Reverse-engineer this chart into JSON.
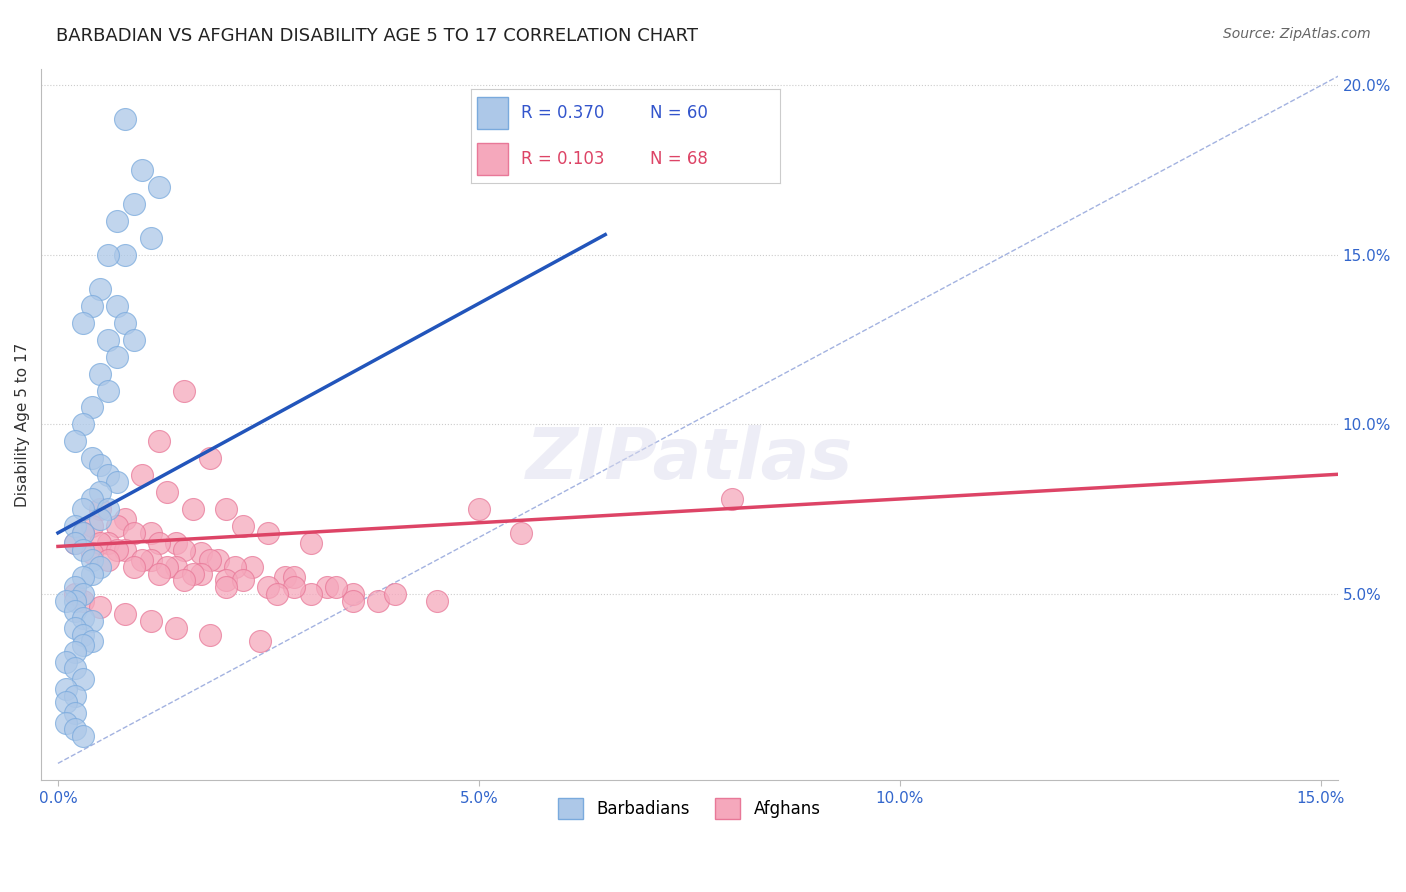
{
  "title": "BARBADIAN VS AFGHAN DISABILITY AGE 5 TO 17 CORRELATION CHART",
  "source_text": "Source: ZipAtlas.com",
  "ylabel": "Disability Age 5 to 17",
  "xlim": [
    -0.002,
    0.152
  ],
  "ylim": [
    -0.005,
    0.205
  ],
  "xticks": [
    0.0,
    0.05,
    0.1,
    0.15
  ],
  "xtick_labels": [
    "0.0%",
    "5.0%",
    "10.0%",
    "15.0%"
  ],
  "yticks": [
    0.05,
    0.1,
    0.15,
    0.2
  ],
  "ytick_labels": [
    "5.0%",
    "10.0%",
    "15.0%",
    "20.0%"
  ],
  "grid_color": "#cccccc",
  "background_color": "#ffffff",
  "barbadian_color": "#adc8e8",
  "afghan_color": "#f5a8bc",
  "barbadian_edge_color": "#7aaadd",
  "afghan_edge_color": "#e87898",
  "barbadian_line_color": "#2255bb",
  "afghan_line_color": "#dd4466",
  "diagonal_color": "#99aadd",
  "R_barbadian": 0.37,
  "N_barbadian": 60,
  "R_afghan": 0.103,
  "N_afghan": 68,
  "barbadian_x": [
    0.008,
    0.01,
    0.012,
    0.009,
    0.007,
    0.011,
    0.008,
    0.006,
    0.005,
    0.004,
    0.003,
    0.006,
    0.007,
    0.008,
    0.009,
    0.007,
    0.005,
    0.006,
    0.004,
    0.003,
    0.002,
    0.004,
    0.005,
    0.006,
    0.007,
    0.005,
    0.004,
    0.006,
    0.003,
    0.005,
    0.002,
    0.003,
    0.002,
    0.003,
    0.004,
    0.005,
    0.004,
    0.003,
    0.002,
    0.003,
    0.002,
    0.001,
    0.002,
    0.003,
    0.004,
    0.002,
    0.003,
    0.004,
    0.003,
    0.002,
    0.001,
    0.002,
    0.003,
    0.001,
    0.002,
    0.001,
    0.002,
    0.001,
    0.002,
    0.003
  ],
  "barbadian_y": [
    0.19,
    0.175,
    0.17,
    0.165,
    0.16,
    0.155,
    0.15,
    0.15,
    0.14,
    0.135,
    0.13,
    0.125,
    0.135,
    0.13,
    0.125,
    0.12,
    0.115,
    0.11,
    0.105,
    0.1,
    0.095,
    0.09,
    0.088,
    0.085,
    0.083,
    0.08,
    0.078,
    0.075,
    0.075,
    0.072,
    0.07,
    0.068,
    0.065,
    0.063,
    0.06,
    0.058,
    0.056,
    0.055,
    0.052,
    0.05,
    0.048,
    0.048,
    0.045,
    0.043,
    0.042,
    0.04,
    0.038,
    0.036,
    0.035,
    0.033,
    0.03,
    0.028,
    0.025,
    0.022,
    0.02,
    0.018,
    0.015,
    0.012,
    0.01,
    0.008
  ],
  "afghan_x": [
    0.012,
    0.015,
    0.018,
    0.01,
    0.013,
    0.016,
    0.02,
    0.022,
    0.025,
    0.03,
    0.008,
    0.011,
    0.014,
    0.017,
    0.019,
    0.023,
    0.027,
    0.032,
    0.035,
    0.038,
    0.005,
    0.007,
    0.009,
    0.012,
    0.015,
    0.018,
    0.021,
    0.028,
    0.033,
    0.04,
    0.004,
    0.006,
    0.008,
    0.011,
    0.014,
    0.017,
    0.02,
    0.025,
    0.03,
    0.045,
    0.003,
    0.005,
    0.007,
    0.01,
    0.013,
    0.016,
    0.022,
    0.028,
    0.05,
    0.08,
    0.002,
    0.004,
    0.006,
    0.009,
    0.012,
    0.015,
    0.02,
    0.026,
    0.035,
    0.055,
    0.002,
    0.003,
    0.005,
    0.008,
    0.011,
    0.014,
    0.018,
    0.024
  ],
  "afghan_y": [
    0.095,
    0.11,
    0.09,
    0.085,
    0.08,
    0.075,
    0.075,
    0.07,
    0.068,
    0.065,
    0.072,
    0.068,
    0.065,
    0.062,
    0.06,
    0.058,
    0.055,
    0.052,
    0.05,
    0.048,
    0.075,
    0.07,
    0.068,
    0.065,
    0.063,
    0.06,
    0.058,
    0.055,
    0.052,
    0.05,
    0.07,
    0.065,
    0.063,
    0.06,
    0.058,
    0.056,
    0.054,
    0.052,
    0.05,
    0.048,
    0.068,
    0.065,
    0.063,
    0.06,
    0.058,
    0.056,
    0.054,
    0.052,
    0.075,
    0.078,
    0.065,
    0.062,
    0.06,
    0.058,
    0.056,
    0.054,
    0.052,
    0.05,
    0.048,
    0.068,
    0.05,
    0.048,
    0.046,
    0.044,
    0.042,
    0.04,
    0.038,
    0.036
  ],
  "title_fontsize": 13,
  "axis_label_fontsize": 11,
  "tick_fontsize": 11,
  "legend_fontsize": 12
}
